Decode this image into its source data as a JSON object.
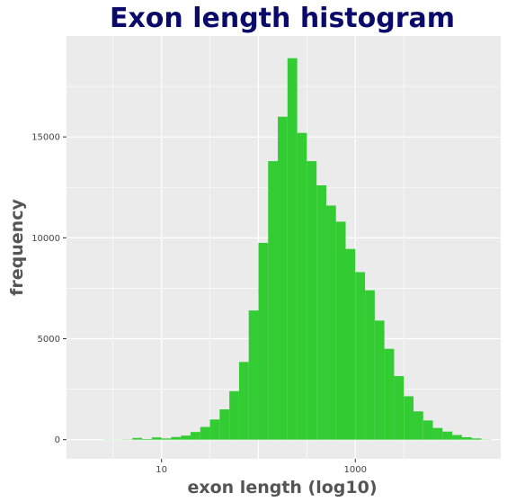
{
  "chart_data": {
    "type": "bar",
    "title": "Exon length histogram",
    "xlabel": "exon length (log10)",
    "ylabel": "frequency",
    "x_scale": "log10",
    "xlim": [
      1.047,
      31622
    ],
    "ylim": [
      -950,
      20000
    ],
    "x_ticks": [
      10,
      1000
    ],
    "x_tick_labels": [
      "10",
      "1000"
    ],
    "y_ticks": [
      0,
      5000,
      10000,
      15000
    ],
    "y_tick_labels": [
      "0",
      "5000",
      "10000",
      "15000"
    ],
    "grid": true,
    "legend": "none",
    "bins": [
      {
        "x0": 2.51,
        "x1": 3.16,
        "value": 8
      },
      {
        "x0": 3.16,
        "x1": 3.98,
        "value": 5
      },
      {
        "x0": 3.98,
        "x1": 5.01,
        "value": 12
      },
      {
        "x0": 5.01,
        "x1": 6.31,
        "value": 85
      },
      {
        "x0": 6.31,
        "x1": 7.94,
        "value": 30
      },
      {
        "x0": 7.94,
        "x1": 10.0,
        "value": 110
      },
      {
        "x0": 10.0,
        "x1": 12.59,
        "value": 60
      },
      {
        "x0": 12.59,
        "x1": 15.85,
        "value": 130
      },
      {
        "x0": 15.85,
        "x1": 19.95,
        "value": 200
      },
      {
        "x0": 19.95,
        "x1": 25.12,
        "value": 380
      },
      {
        "x0": 25.12,
        "x1": 31.62,
        "value": 630
      },
      {
        "x0": 31.62,
        "x1": 39.81,
        "value": 1000
      },
      {
        "x0": 39.81,
        "x1": 50.12,
        "value": 1500
      },
      {
        "x0": 50.12,
        "x1": 63.1,
        "value": 2400
      },
      {
        "x0": 63.1,
        "x1": 79.43,
        "value": 3850
      },
      {
        "x0": 79.43,
        "x1": 100.0,
        "value": 6400
      },
      {
        "x0": 100.0,
        "x1": 125.89,
        "value": 9750
      },
      {
        "x0": 125.89,
        "x1": 158.49,
        "value": 13800
      },
      {
        "x0": 158.49,
        "x1": 199.53,
        "value": 16000
      },
      {
        "x0": 199.53,
        "x1": 251.19,
        "value": 18900
      },
      {
        "x0": 251.19,
        "x1": 316.23,
        "value": 15200
      },
      {
        "x0": 316.23,
        "x1": 398.11,
        "value": 13800
      },
      {
        "x0": 398.11,
        "x1": 501.19,
        "value": 12600
      },
      {
        "x0": 501.19,
        "x1": 630.96,
        "value": 11600
      },
      {
        "x0": 630.96,
        "x1": 794.33,
        "value": 10800
      },
      {
        "x0": 794.33,
        "x1": 1000.0,
        "value": 9450
      },
      {
        "x0": 1000.0,
        "x1": 1258.93,
        "value": 8300
      },
      {
        "x0": 1258.93,
        "x1": 1584.89,
        "value": 7400
      },
      {
        "x0": 1584.89,
        "x1": 1995.26,
        "value": 5900
      },
      {
        "x0": 1995.26,
        "x1": 2511.89,
        "value": 4500
      },
      {
        "x0": 2511.89,
        "x1": 3162.28,
        "value": 3150
      },
      {
        "x0": 3162.28,
        "x1": 3981.07,
        "value": 2150
      },
      {
        "x0": 3981.07,
        "x1": 5011.87,
        "value": 1400
      },
      {
        "x0": 5011.87,
        "x1": 6309.57,
        "value": 950
      },
      {
        "x0": 6309.57,
        "x1": 7943.28,
        "value": 580
      },
      {
        "x0": 7943.28,
        "x1": 10000.0,
        "value": 400
      },
      {
        "x0": 10000.0,
        "x1": 12589.25,
        "value": 230
      },
      {
        "x0": 12589.25,
        "x1": 15848.93,
        "value": 120
      },
      {
        "x0": 15848.93,
        "x1": 19952.62,
        "value": 60
      },
      {
        "x0": 19952.62,
        "x1": 25118.86,
        "value": 10
      }
    ],
    "colors": {
      "bar": "#33cc33",
      "panel_background": "#ebebeb",
      "grid_major": "#ffffff",
      "title": "#0a0a6b",
      "axis_title": "#555555",
      "tick_label": "#444444"
    }
  }
}
